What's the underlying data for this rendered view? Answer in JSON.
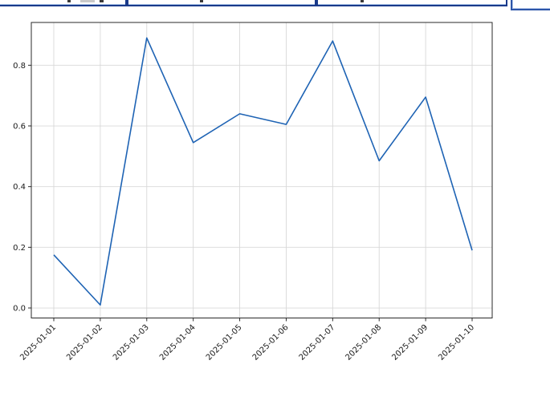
{
  "topbar": {
    "panel_border_color": "#1a3a8a",
    "panel_highlight_color": "#a9c3e8",
    "button_border_color": "#2d55a8",
    "button_highlight_color": "#b0c4e8"
  },
  "chart_data": {
    "type": "line",
    "title": "",
    "xlabel": "",
    "ylabel": "",
    "x": [
      "2025-01-01",
      "2025-01-02",
      "2025-01-03",
      "2025-01-04",
      "2025-01-05",
      "2025-01-06",
      "2025-01-07",
      "2025-01-08",
      "2025-01-09",
      "2025-01-10"
    ],
    "values": [
      0.175,
      0.01,
      0.89,
      0.545,
      0.64,
      0.605,
      0.88,
      0.485,
      0.695,
      0.19
    ],
    "yticks": [
      0.0,
      0.2,
      0.4,
      0.6,
      0.8
    ],
    "ytick_labels": [
      "0.0",
      "0.2",
      "0.4",
      "0.6",
      "0.8"
    ],
    "ylim": [
      -0.033,
      0.941
    ],
    "grid": true,
    "legend_position": "none",
    "line_color": "#1e63b4",
    "grid_color": "#d8d8d8",
    "spine_color": "#2a2a2a",
    "tick_label_color": "#1a1a1a"
  }
}
